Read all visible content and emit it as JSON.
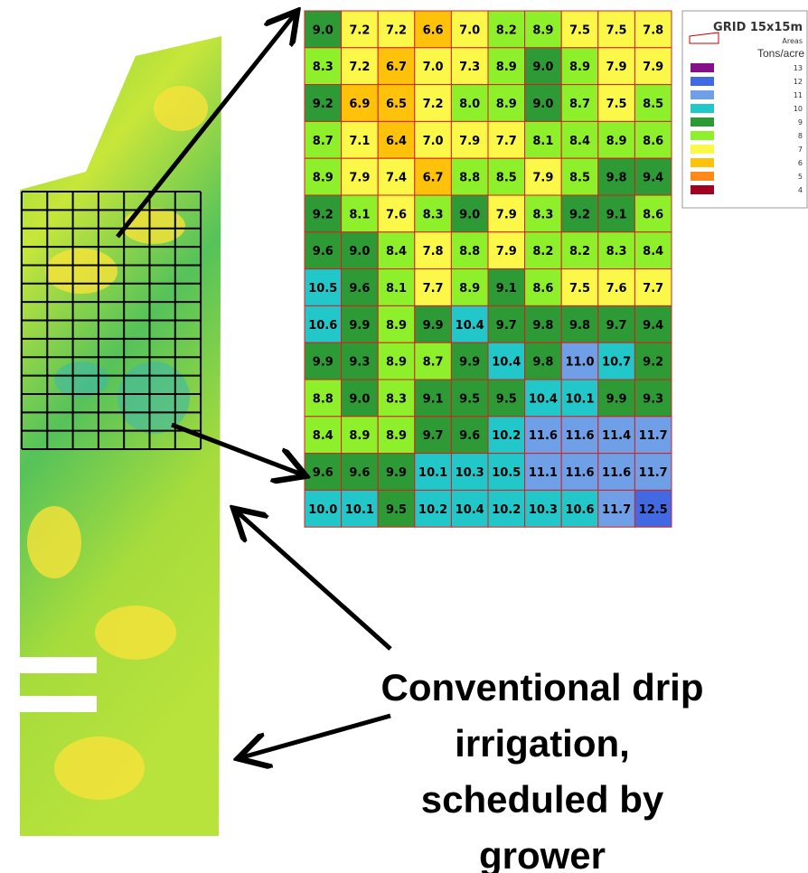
{
  "grid": {
    "rows": [
      [
        "9.0",
        "7.2",
        "7.2",
        "6.6",
        "7.0",
        "8.2",
        "8.9",
        "7.5",
        "7.5",
        "7.8"
      ],
      [
        "8.3",
        "7.2",
        "6.7",
        "7.0",
        "7.3",
        "8.9",
        "9.0",
        "8.9",
        "7.9",
        "7.9"
      ],
      [
        "9.2",
        "6.9",
        "6.5",
        "7.2",
        "8.0",
        "8.9",
        "9.0",
        "8.7",
        "7.5",
        "8.5"
      ],
      [
        "8.7",
        "7.1",
        "6.4",
        "7.0",
        "7.9",
        "7.7",
        "8.1",
        "8.4",
        "8.9",
        "8.6"
      ],
      [
        "8.9",
        "7.9",
        "7.4",
        "6.7",
        "8.8",
        "8.5",
        "7.9",
        "8.5",
        "9.8",
        "9.4"
      ],
      [
        "9.2",
        "8.1",
        "7.6",
        "8.3",
        "9.0",
        "7.9",
        "8.3",
        "9.2",
        "9.1",
        "8.6"
      ],
      [
        "9.6",
        "9.0",
        "8.4",
        "7.8",
        "8.8",
        "7.9",
        "8.2",
        "8.2",
        "8.3",
        "8.4"
      ],
      [
        "10.5",
        "9.6",
        "8.1",
        "7.7",
        "8.9",
        "9.1",
        "8.6",
        "7.5",
        "7.6",
        "7.7"
      ],
      [
        "10.6",
        "9.9",
        "8.9",
        "9.9",
        "10.4",
        "9.7",
        "9.8",
        "9.8",
        "9.7",
        "9.4"
      ],
      [
        "9.9",
        "9.3",
        "8.9",
        "8.7",
        "9.9",
        "10.4",
        "9.8",
        "11.0",
        "10.7",
        "9.2"
      ],
      [
        "8.8",
        "9.0",
        "8.3",
        "9.1",
        "9.5",
        "9.5",
        "10.4",
        "10.1",
        "9.9",
        "9.3"
      ],
      [
        "8.4",
        "8.9",
        "8.9",
        "9.7",
        "9.6",
        "10.2",
        "11.6",
        "11.6",
        "11.4",
        "11.7"
      ],
      [
        "9.6",
        "9.6",
        "9.9",
        "10.1",
        "10.3",
        "10.5",
        "11.1",
        "11.6",
        "11.6",
        "11.7"
      ],
      [
        "10.0",
        "10.1",
        "9.5",
        "10.2",
        "10.4",
        "10.2",
        "10.3",
        "10.6",
        "11.7",
        "12.5"
      ]
    ]
  },
  "legend": {
    "title": "GRID 15x15m",
    "areas": "Areas",
    "unit": "Tons/acre",
    "items": [
      {
        "value": 13,
        "color": "#86108a"
      },
      {
        "value": 12,
        "color": "#4169e1"
      },
      {
        "value": 11,
        "color": "#6f9fe6"
      },
      {
        "value": 10,
        "color": "#22c7c9"
      },
      {
        "value": 9,
        "color": "#2e9a35"
      },
      {
        "value": 8,
        "color": "#8ef02a"
      },
      {
        "value": 7,
        "color": "#fbf84a"
      },
      {
        "value": 6,
        "color": "#ffc20a"
      },
      {
        "value": 5,
        "color": "#ff8a1a"
      },
      {
        "value": 4,
        "color": "#a3001f"
      }
    ]
  },
  "caption": {
    "lines": [
      "Conventional drip",
      "irrigation,",
      "scheduled by",
      "grower"
    ]
  }
}
